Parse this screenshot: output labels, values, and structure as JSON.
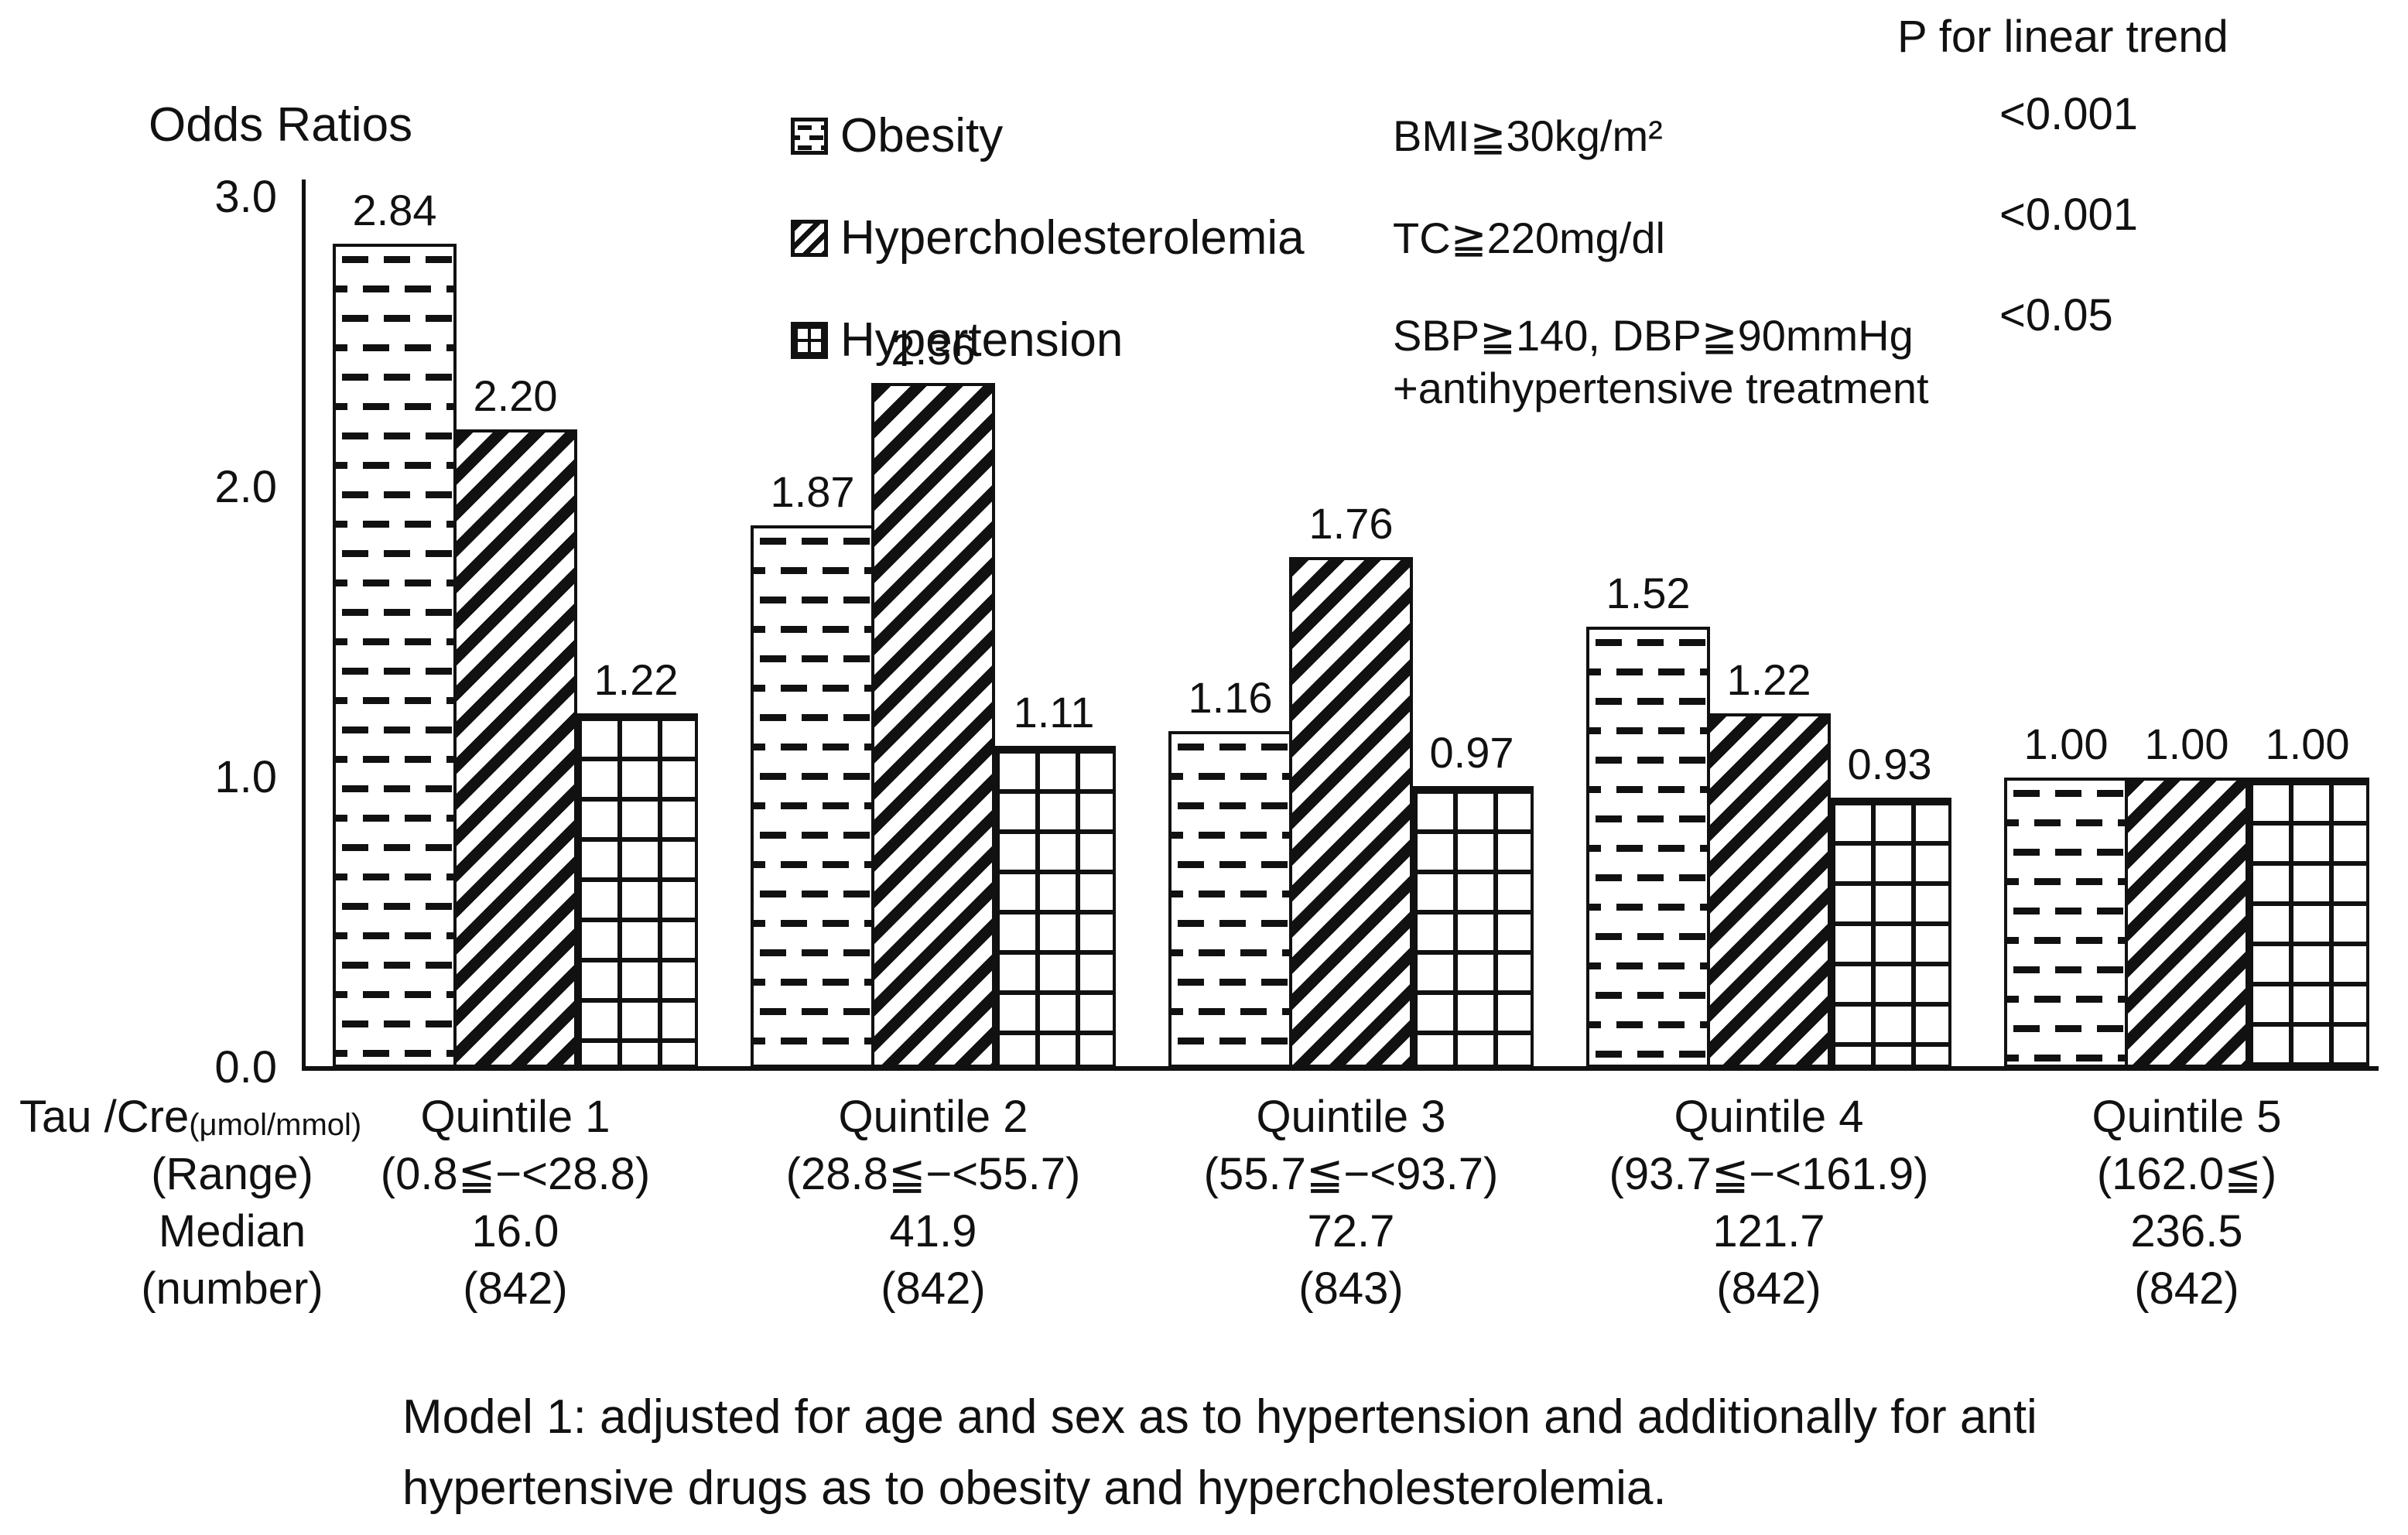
{
  "y_axis_title": "Odds Ratios",
  "p_trend_header": "P for linear trend",
  "chart_data": {
    "type": "bar",
    "ylabel": "Odds Ratios",
    "ylim": [
      0,
      3
    ],
    "ytick_labels": [
      "3.0",
      "2.0",
      "1.0",
      "0.0"
    ],
    "grid": false,
    "legend_position": "top-center",
    "categories": [
      "Quintile 1",
      "Quintile 2",
      "Quintile 3",
      "Quintile 4",
      "Quintile 5"
    ],
    "series": [
      {
        "name": "Obesity",
        "definition": "BMI≧30kg/m²",
        "p_linear_trend": "<0.001",
        "pattern": "horizontal-dashes",
        "values": [
          2.84,
          1.87,
          1.16,
          1.52,
          1.0
        ]
      },
      {
        "name": "Hypercholesterolemia",
        "definition": "TC≧220mg/dl",
        "p_linear_trend": "<0.001",
        "pattern": "diagonal-stripes",
        "values": [
          2.2,
          2.36,
          1.76,
          1.22,
          1.0
        ]
      },
      {
        "name": "Hypertension",
        "definition": "SBP≧140, DBP≧90mmHg",
        "definition_line2": "+antihypertensive treatment",
        "p_linear_trend": "<0.05",
        "pattern": "grid",
        "values": [
          1.22,
          1.11,
          0.97,
          0.93,
          1.0
        ]
      }
    ]
  },
  "x_axis_table": {
    "unit_label": "Tau /Cre",
    "unit_label_sub": "(μmol/mmol)",
    "range_row_label": "(Range)",
    "median_row_label": "Median",
    "number_row_label": "(number)",
    "columns": [
      {
        "quintile": "Quintile 1",
        "range": "(0.8≦−<28.8)",
        "median": "16.0",
        "number": "(842)"
      },
      {
        "quintile": "Quintile 2",
        "range": "(28.8≦−<55.7)",
        "median": "41.9",
        "number": "(842)"
      },
      {
        "quintile": "Quintile 3",
        "range": "(55.7≦−<93.7)",
        "median": "72.7",
        "number": "(843)"
      },
      {
        "quintile": "Quintile 4",
        "range": "(93.7≦−<161.9)",
        "median": "121.7",
        "number": "(842)"
      },
      {
        "quintile": "Quintile 5",
        "range": "(162.0≦)",
        "median": "236.5",
        "number": "(842)"
      }
    ]
  },
  "footnote_line1": "Model 1: adjusted for age and sex as to hypertension and additionally for anti",
  "footnote_line2": "hypertensive drugs as to obesity and hypercholesterolemia.",
  "colors": {
    "ink": "#111111",
    "background": "#ffffff"
  }
}
